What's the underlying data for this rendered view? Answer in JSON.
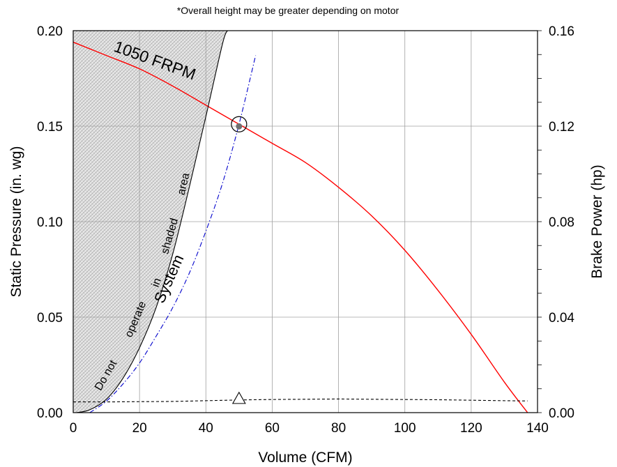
{
  "chart_data": {
    "type": "line",
    "note": "*Overall height may be greater depending on motor",
    "xlabel": "Volume (CFM)",
    "ylabel": "Static Pressure (in. wg)",
    "y2label": "Brake Power (hp)",
    "xlim": [
      0,
      140
    ],
    "ylim": [
      0,
      0.2
    ],
    "y2lim": [
      0,
      0.16
    ],
    "grid": true,
    "x_ticks": [
      "0",
      "20",
      "40",
      "60",
      "80",
      "100",
      "120",
      "140"
    ],
    "y_ticks": [
      "0.00",
      "0.05",
      "0.10",
      "0.15",
      "0.20"
    ],
    "y2_ticks": [
      "0.00",
      "0.04",
      "0.08",
      "0.12",
      "0.16"
    ],
    "series": [
      {
        "name": "1050 FRPM",
        "style": "solid",
        "color": "#ff0000",
        "axis": "left",
        "x": [
          0,
          10,
          20,
          30,
          40,
          50,
          60,
          70,
          80,
          90,
          100,
          110,
          120,
          130,
          137
        ],
        "y": [
          0.194,
          0.187,
          0.18,
          0.171,
          0.161,
          0.151,
          0.141,
          0.131,
          0.118,
          0.103,
          0.085,
          0.064,
          0.041,
          0.016,
          0.0
        ]
      },
      {
        "name": "System",
        "style": "dash-dot",
        "color": "#0000cc",
        "axis": "left",
        "x": [
          5,
          10,
          15,
          20,
          25,
          30,
          35,
          40,
          45,
          50,
          55
        ],
        "y": [
          0.0,
          0.006,
          0.015,
          0.026,
          0.04,
          0.055,
          0.073,
          0.095,
          0.12,
          0.151,
          0.187
        ]
      },
      {
        "style": "dashed",
        "color": "#000000",
        "axis": "right",
        "x": [
          0,
          10,
          20,
          30,
          40,
          50,
          60,
          70,
          80,
          90,
          100,
          110,
          120,
          130,
          137
        ],
        "y": [
          0.0045,
          0.0045,
          0.0046,
          0.0047,
          0.005,
          0.0053,
          0.0055,
          0.0056,
          0.0057,
          0.0056,
          0.0055,
          0.0054,
          0.0052,
          0.005,
          0.0049
        ]
      },
      {
        "name": "Do not operate in shaded area",
        "style": "solid",
        "color": "#000000",
        "axis": "left",
        "x": [
          1,
          5,
          10,
          15,
          20,
          25,
          30,
          35,
          40,
          45,
          46.5
        ],
        "y": [
          0.0,
          0.0015,
          0.007,
          0.018,
          0.034,
          0.055,
          0.083,
          0.118,
          0.155,
          0.193,
          0.2
        ]
      }
    ],
    "operating_point": {
      "x": 50,
      "y": 0.151
    },
    "power_marker": {
      "x": 50,
      "y2": 0.005
    },
    "labels": {
      "fan_curve": "1050  FRPM",
      "system_curve": "System",
      "shaded_words": [
        "Do not",
        "operate",
        "in",
        "shaded",
        "area"
      ]
    },
    "colors": {
      "fan": "#ff0000",
      "system": "#0000cc",
      "grid": "#a0a0a0",
      "shade": "#d9d9d9"
    }
  }
}
